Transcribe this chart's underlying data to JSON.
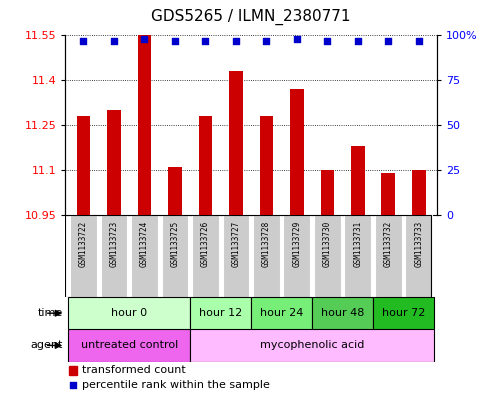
{
  "title": "GDS5265 / ILMN_2380771",
  "samples": [
    "GSM1133722",
    "GSM1133723",
    "GSM1133724",
    "GSM1133725",
    "GSM1133726",
    "GSM1133727",
    "GSM1133728",
    "GSM1133729",
    "GSM1133730",
    "GSM1133731",
    "GSM1133732",
    "GSM1133733"
  ],
  "bar_values": [
    11.28,
    11.3,
    11.55,
    11.11,
    11.28,
    11.43,
    11.28,
    11.37,
    11.1,
    11.18,
    11.09,
    11.1
  ],
  "percentile_values": [
    97,
    97,
    98,
    97,
    97,
    97,
    97,
    98,
    97,
    97,
    97,
    97
  ],
  "bar_color": "#cc0000",
  "percentile_color": "#0000cc",
  "ylim_left": [
    10.95,
    11.55
  ],
  "yticks_left": [
    10.95,
    11.1,
    11.25,
    11.4,
    11.55
  ],
  "yticks_right": [
    0,
    25,
    50,
    75,
    100
  ],
  "ylim_right": [
    0,
    100
  ],
  "time_groups": [
    {
      "label": "hour 0",
      "start": 0,
      "end": 3,
      "color": "#ccffcc"
    },
    {
      "label": "hour 12",
      "start": 4,
      "end": 5,
      "color": "#aaffaa"
    },
    {
      "label": "hour 24",
      "start": 6,
      "end": 7,
      "color": "#77ee77"
    },
    {
      "label": "hour 48",
      "start": 8,
      "end": 9,
      "color": "#55cc55"
    },
    {
      "label": "hour 72",
      "start": 10,
      "end": 11,
      "color": "#22bb22"
    }
  ],
  "agent_groups": [
    {
      "label": "untreated control",
      "start": 0,
      "end": 3,
      "color": "#ee66ee"
    },
    {
      "label": "mycophenolic acid",
      "start": 4,
      "end": 11,
      "color": "#ffbbff"
    }
  ],
  "legend_bar_label": "transformed count",
  "legend_pct_label": "percentile rank within the sample",
  "time_label": "time",
  "agent_label": "agent",
  "bar_width": 0.45,
  "sample_bg_color": "#cccccc",
  "tick_fontsize": 8,
  "title_fontsize": 11,
  "label_fontsize": 8,
  "sample_fontsize": 5.5,
  "group_fontsize": 8
}
